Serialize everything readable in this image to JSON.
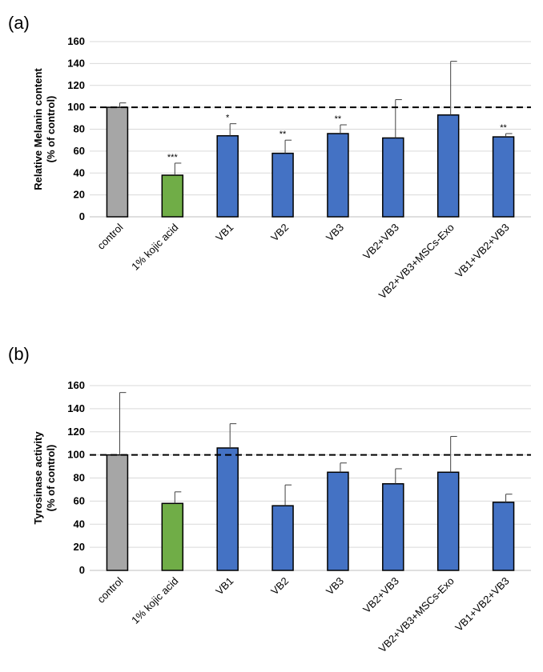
{
  "chart_data": [
    {
      "panel_label": "(a)",
      "type": "bar",
      "ylabel_line1": "Relative Melanin content",
      "ylabel_line2": "(% of control)",
      "ylim": [
        0,
        160
      ],
      "yticks": [
        "0",
        "20",
        "40",
        "60",
        "80",
        "100",
        "120",
        "140",
        "160"
      ],
      "grid": true,
      "reference_line": 100,
      "categories": [
        "control",
        "1% kojic acid",
        "VB1",
        "VB2",
        "VB3",
        "VB2+VB3",
        "VB2+VB3+MSCs-Exo",
        "VB1+VB2+VB3"
      ],
      "values": [
        100,
        38,
        74,
        58,
        76,
        72,
        93,
        73
      ],
      "errors": [
        4,
        11,
        11,
        12,
        8,
        35,
        49,
        3
      ],
      "significance": [
        "",
        "***",
        "*",
        "**",
        "**",
        "",
        "",
        "**"
      ],
      "colors": [
        "#a6a6a6",
        "#70ad47",
        "#4472c4",
        "#4472c4",
        "#4472c4",
        "#4472c4",
        "#4472c4",
        "#4472c4"
      ]
    },
    {
      "panel_label": "(b)",
      "type": "bar",
      "ylabel_line1": "Tyrosinase activity",
      "ylabel_line2": "(% of control)",
      "ylim": [
        0,
        160
      ],
      "yticks": [
        "0",
        "20",
        "40",
        "60",
        "80",
        "100",
        "120",
        "140",
        "160"
      ],
      "grid": true,
      "reference_line": 100,
      "categories": [
        "control",
        "1% kojic acid",
        "VB1",
        "VB2",
        "VB3",
        "VB2+VB3",
        "VB2+VB3+MSCs-Exo",
        "VB1+VB2+VB3"
      ],
      "values": [
        100,
        58,
        106,
        56,
        85,
        75,
        85,
        59
      ],
      "errors": [
        54,
        10,
        21,
        18,
        8,
        13,
        31,
        7
      ],
      "significance": [
        "",
        "",
        "",
        "",
        "",
        "",
        "",
        ""
      ],
      "colors": [
        "#a6a6a6",
        "#70ad47",
        "#4472c4",
        "#4472c4",
        "#4472c4",
        "#4472c4",
        "#4472c4",
        "#4472c4"
      ]
    }
  ]
}
